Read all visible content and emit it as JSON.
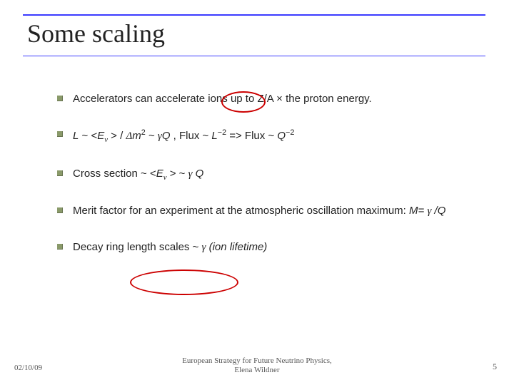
{
  "title": "Some scaling",
  "bullets": {
    "b1_pre": "Accelerators can accelerate ions up to Z/A × the proton energy.",
    "b2_L": "L",
    "b2_tilde1": " ~ <",
    "b2_E": "E",
    "b2_nu": "ν",
    "b2_gt": " > / ",
    "b2_delta": "Δ",
    "b2_m": "m",
    "b2_two": "2",
    "b2_tilde2": " ~ ",
    "b2_gamma1": "γ",
    "b2_Q": "Q",
    "b2_comma": " , Flux  ~ ",
    "b2_L2": "L",
    "b2_exp1": "−2",
    "b2_arrow": " =>  Flux ~ ",
    "b2_Q2": "Q",
    "b2_exp2": "−2",
    "b3_pre": "Cross section ~ <",
    "b3_E": "E",
    "b3_nu": "ν",
    "b3_gt": " > ~  ",
    "b3_gamma": "γ",
    "b3_Q": " Q",
    "b4_pre": "Merit factor for an experiment at the atmospheric oscillation maximum:   ",
    "b4_M": "M= ",
    "b4_gamma": "γ",
    "b4_over": " /Q",
    "b5_pre": "Decay ring length scales ~ ",
    "b5_gamma": "γ",
    "b5_post": "  (ion lifetime)"
  },
  "footer": {
    "date": "02/10/09",
    "center_l1": "European Strategy for Future Neutrino Physics,",
    "center_l2": "Elena Wildner",
    "page": "5"
  }
}
